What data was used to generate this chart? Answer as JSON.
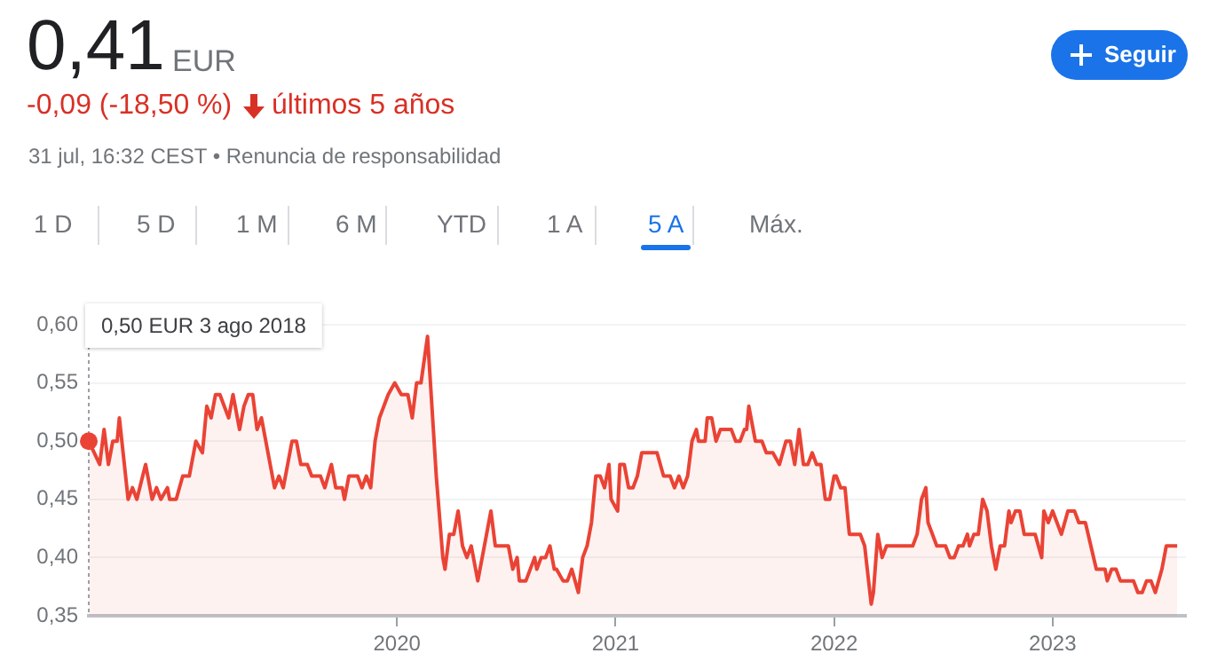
{
  "chart_data": {
    "type": "area",
    "title": "0,41",
    "color": "#ea4335",
    "legend": false,
    "grid": "y",
    "marker": "none",
    "xlim": [
      2018.59,
      2023.61
    ],
    "xticks": [
      2020,
      2021,
      2022,
      2023
    ],
    "ylim": [
      0.35,
      0.6
    ],
    "yticks": [
      {
        "value": 0.35,
        "label": "0,35"
      },
      {
        "value": 0.4,
        "label": "0,40"
      },
      {
        "value": 0.45,
        "label": "0,45"
      },
      {
        "value": 0.5,
        "label": "0,50"
      },
      {
        "value": 0.55,
        "label": "0,55"
      },
      {
        "value": 0.6,
        "label": "0,60"
      }
    ],
    "annotations": [
      "EUR",
      "-0,09 (-18,50 %)",
      "últimos 5 años",
      "31 jul, 16:32 CEST • Renuncia de responsabilidad",
      "Seguir",
      "1 D",
      "5 D",
      "1 M",
      "6 M",
      "YTD",
      "1 A",
      "5 A",
      "Máx.",
      "0,50 EUR 3 ago 2018"
    ],
    "x": [
      2018.59,
      2018.64,
      2018.66,
      2018.68,
      2018.7,
      2018.72,
      2018.73,
      2018.77,
      2018.79,
      2018.81,
      2018.85,
      2018.88,
      2018.9,
      2018.92,
      2018.95,
      2018.96,
      2018.99,
      2019.02,
      2019.05,
      2019.08,
      2019.11,
      2019.13,
      2019.15,
      2019.17,
      2019.19,
      2019.23,
      2019.25,
      2019.28,
      2019.3,
      2019.32,
      2019.34,
      2019.36,
      2019.38,
      2019.44,
      2019.46,
      2019.48,
      2019.52,
      2019.54,
      2019.56,
      2019.59,
      2019.61,
      2019.65,
      2019.67,
      2019.7,
      2019.72,
      2019.75,
      2019.76,
      2019.78,
      2019.82,
      2019.84,
      2019.86,
      2019.88,
      2019.9,
      2019.92,
      2019.96,
      2019.99,
      2020.02,
      2020.05,
      2020.07,
      2020.09,
      2020.11,
      2020.14,
      2020.18,
      2020.21,
      2020.22,
      2020.24,
      2020.26,
      2020.28,
      2020.3,
      2020.32,
      2020.34,
      2020.37,
      2020.4,
      2020.43,
      2020.45,
      2020.51,
      2020.53,
      2020.55,
      2020.56,
      2020.59,
      2020.63,
      2020.64,
      2020.66,
      2020.68,
      2020.7,
      2020.72,
      2020.73,
      2020.76,
      2020.78,
      2020.8,
      2020.83,
      2020.85,
      2020.87,
      2020.89,
      2020.91,
      2020.93,
      2020.95,
      2020.97,
      2020.98,
      2021.01,
      2021.02,
      2021.04,
      2021.06,
      2021.08,
      2021.1,
      2021.12,
      2021.19,
      2021.22,
      2021.25,
      2021.27,
      2021.29,
      2021.31,
      2021.33,
      2021.35,
      2021.37,
      2021.38,
      2021.41,
      2021.42,
      2021.44,
      2021.46,
      2021.48,
      2021.53,
      2021.55,
      2021.57,
      2021.59,
      2021.6,
      2021.61,
      2021.64,
      2021.67,
      2021.69,
      2021.72,
      2021.75,
      2021.78,
      2021.8,
      2021.82,
      2021.84,
      2021.86,
      2021.88,
      2021.9,
      2021.92,
      2021.94,
      2021.96,
      2021.98,
      2022.0,
      2022.01,
      2022.03,
      2022.05,
      2022.07,
      2022.12,
      2022.14,
      2022.17,
      2022.18,
      2022.2,
      2022.22,
      2022.24,
      2022.36,
      2022.38,
      2022.4,
      2022.42,
      2022.43,
      2022.47,
      2022.51,
      2022.53,
      2022.55,
      2022.57,
      2022.59,
      2022.61,
      2022.62,
      2022.64,
      2022.66,
      2022.68,
      2022.7,
      2022.72,
      2022.74,
      2022.76,
      2022.78,
      2022.8,
      2022.81,
      2022.83,
      2022.85,
      2022.87,
      2022.92,
      2022.95,
      2022.96,
      2022.98,
      2023.0,
      2023.02,
      2023.04,
      2023.07,
      2023.1,
      2023.12,
      2023.15,
      2023.2,
      2023.24,
      2023.25,
      2023.27,
      2023.29,
      2023.31,
      2023.37,
      2023.39,
      2023.41,
      2023.43,
      2023.45,
      2023.47,
      2023.5,
      2023.52,
      2023.55,
      2023.57
    ],
    "values": [
      0.5,
      0.48,
      0.51,
      0.48,
      0.5,
      0.5,
      0.52,
      0.45,
      0.46,
      0.45,
      0.48,
      0.45,
      0.46,
      0.45,
      0.46,
      0.45,
      0.45,
      0.47,
      0.47,
      0.5,
      0.49,
      0.53,
      0.52,
      0.54,
      0.54,
      0.52,
      0.54,
      0.51,
      0.53,
      0.54,
      0.54,
      0.51,
      0.52,
      0.46,
      0.47,
      0.46,
      0.5,
      0.5,
      0.48,
      0.48,
      0.47,
      0.47,
      0.46,
      0.48,
      0.46,
      0.46,
      0.45,
      0.47,
      0.47,
      0.46,
      0.47,
      0.46,
      0.5,
      0.52,
      0.54,
      0.55,
      0.54,
      0.54,
      0.52,
      0.55,
      0.55,
      0.59,
      0.47,
      0.4,
      0.39,
      0.42,
      0.42,
      0.44,
      0.41,
      0.4,
      0.41,
      0.38,
      0.41,
      0.44,
      0.41,
      0.41,
      0.39,
      0.4,
      0.38,
      0.38,
      0.4,
      0.39,
      0.4,
      0.4,
      0.41,
      0.39,
      0.39,
      0.38,
      0.38,
      0.39,
      0.37,
      0.4,
      0.41,
      0.43,
      0.47,
      0.47,
      0.46,
      0.48,
      0.45,
      0.44,
      0.48,
      0.48,
      0.46,
      0.46,
      0.47,
      0.49,
      0.49,
      0.47,
      0.47,
      0.46,
      0.47,
      0.46,
      0.47,
      0.5,
      0.51,
      0.5,
      0.5,
      0.52,
      0.52,
      0.5,
      0.51,
      0.51,
      0.5,
      0.5,
      0.51,
      0.51,
      0.53,
      0.5,
      0.5,
      0.49,
      0.49,
      0.48,
      0.5,
      0.5,
      0.48,
      0.51,
      0.48,
      0.48,
      0.49,
      0.48,
      0.48,
      0.45,
      0.45,
      0.47,
      0.47,
      0.46,
      0.46,
      0.42,
      0.42,
      0.41,
      0.36,
      0.37,
      0.42,
      0.4,
      0.41,
      0.41,
      0.42,
      0.45,
      0.46,
      0.43,
      0.41,
      0.41,
      0.4,
      0.4,
      0.41,
      0.41,
      0.42,
      0.41,
      0.42,
      0.42,
      0.45,
      0.44,
      0.41,
      0.39,
      0.41,
      0.41,
      0.44,
      0.43,
      0.44,
      0.44,
      0.42,
      0.42,
      0.4,
      0.44,
      0.43,
      0.44,
      0.43,
      0.42,
      0.44,
      0.44,
      0.43,
      0.43,
      0.39,
      0.39,
      0.38,
      0.39,
      0.39,
      0.38,
      0.38,
      0.37,
      0.37,
      0.38,
      0.38,
      0.37,
      0.39,
      0.41,
      0.41,
      0.41
    ]
  }
}
